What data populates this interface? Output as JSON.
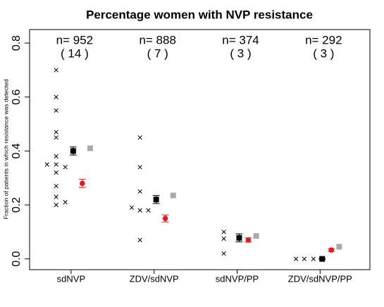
{
  "chart_data": {
    "type": "scatter",
    "title": "Percentage women with NVP resistance",
    "y_label": "Fraction of patients in which resistance was detected",
    "xlim": [
      0.5,
      4.6
    ],
    "ylim": [
      -0.04,
      0.85
    ],
    "xticks": [
      {
        "value": 1,
        "label": "sdNVP"
      },
      {
        "value": 2,
        "label": "ZDV/sdNVP"
      },
      {
        "value": 3,
        "label": "sdNVP/PP"
      },
      {
        "value": 4,
        "label": "ZDV/sdNVP/PP"
      }
    ],
    "yticks": [
      {
        "value": 0,
        "label": "0.0"
      },
      0.2,
      0.4,
      0.6,
      0.8
    ],
    "annotations": [
      [
        "n= 952",
        "( 14 )"
      ],
      [
        "n= 888",
        "( 7 )"
      ],
      [
        "n= 374",
        "( 3 )"
      ],
      [
        "n= 292",
        "( 3 )"
      ]
    ],
    "series": [
      {
        "color": "#000000",
        "marker": "cross",
        "x": [
          0.71,
          0.82,
          0.82,
          0.82,
          0.82,
          0.82,
          0.82,
          0.82,
          0.82,
          0.82,
          0.82,
          0.82,
          0.93,
          0.93,
          1.73,
          1.83,
          1.83,
          1.83,
          1.83,
          1.83,
          1.93,
          2.84,
          2.84,
          2.84,
          3.71,
          3.81,
          3.92
        ],
        "values": [
          0.35,
          0.7,
          0.6,
          0.55,
          0.47,
          0.45,
          0.38,
          0.35,
          0.32,
          0.27,
          0.23,
          0.2,
          0.21,
          0.34,
          0.19,
          0.45,
          0.34,
          0.25,
          0.18,
          0.07,
          0.18,
          0.1,
          0.075,
          0.02,
          0,
          0,
          0
        ]
      },
      {
        "color": "#000000",
        "marker": "square",
        "x": [
          1.025,
          2.025,
          3.025,
          4.025
        ],
        "values": [
          0.4,
          0.22,
          0.078,
          0
        ],
        "errors": [
          0.015,
          0.015,
          0.015,
          0
        ]
      },
      {
        "color": "#e41a1c",
        "marker": "circle",
        "x": [
          1.135,
          2.135,
          3.135,
          4.135
        ],
        "values": [
          0.28,
          0.15,
          0.07,
          0.033
        ],
        "errors": [
          0.015,
          0.013,
          0.008,
          0.005
        ]
      },
      {
        "color": "#aaaaaa",
        "marker": "square",
        "x": [
          1.23,
          2.23,
          3.23,
          4.23
        ],
        "values": [
          0.41,
          0.235,
          0.085,
          0.045
        ]
      }
    ]
  }
}
